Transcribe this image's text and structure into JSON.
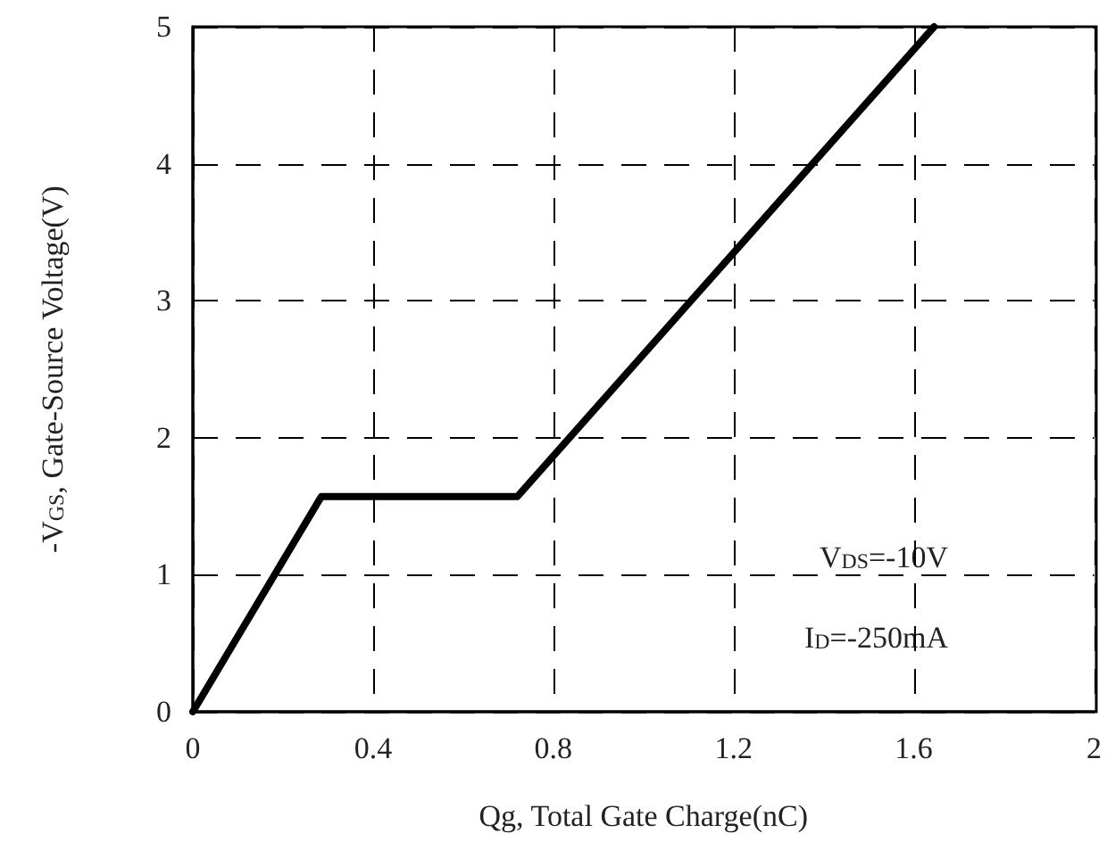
{
  "chart_data": {
    "type": "line",
    "xlabel": "Qg, Total Gate Charge(nC)",
    "ylabel": "-V$_{GS}$, Gate-Source Voltage(V)",
    "series": [
      {
        "color": "#000000",
        "x": [
          0,
          0.285,
          0.72,
          1.645
        ],
        "values": [
          0,
          1.57,
          1.57,
          5
        ]
      }
    ],
    "xlim": [
      0,
      2
    ],
    "xticks": [
      0,
      0.4,
      0.8,
      1.2,
      1.6,
      2
    ],
    "ylim": [
      0,
      5
    ],
    "yticks": [
      0,
      1,
      2,
      3,
      4,
      5
    ],
    "grid": true,
    "marker": "none",
    "line_style": "solid",
    "annotations": [
      "V$_{DS}$=-10V",
      "I$_{D}$=-250mA"
    ]
  }
}
